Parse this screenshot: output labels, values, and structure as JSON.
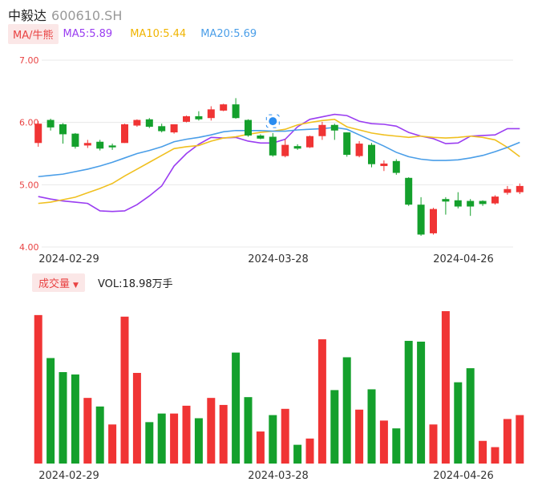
{
  "header": {
    "name": "中毅达",
    "code": "600610.SH"
  },
  "ma": {
    "tag": "MA/牛熊",
    "ma5": "MA5:5.89",
    "ma10": "MA10:5.44",
    "ma20": "MA20:5.69"
  },
  "volume": {
    "tag": "成交量",
    "label": "VOL:18.98万手"
  },
  "colors": {
    "up": "#f03434",
    "down": "#14a02c",
    "ma5": "#9a3df1",
    "ma10": "#f0c020",
    "ma20": "#4a9ee8",
    "axis_label": "#e94343",
    "grid": "#e8e8e8"
  },
  "chart_data": [
    {
      "type": "candlestick",
      "ylim": [
        4.0,
        7.0
      ],
      "y_ticks": [
        "7.00",
        "6.00",
        "5.00",
        "4.00"
      ],
      "x_ticks": [
        "2024-02-29",
        "2024-03-28",
        "2024-04-26"
      ],
      "candles": [
        {
          "o": 5.67,
          "c": 5.98,
          "h": 6.02,
          "l": 5.61
        },
        {
          "o": 6.04,
          "c": 5.92,
          "h": 6.06,
          "l": 5.87
        },
        {
          "o": 5.97,
          "c": 5.81,
          "h": 5.99,
          "l": 5.66
        },
        {
          "o": 5.82,
          "c": 5.61,
          "h": 5.83,
          "l": 5.58
        },
        {
          "o": 5.63,
          "c": 5.67,
          "h": 5.72,
          "l": 5.59
        },
        {
          "o": 5.69,
          "c": 5.58,
          "h": 5.72,
          "l": 5.55
        },
        {
          "o": 5.63,
          "c": 5.6,
          "h": 5.66,
          "l": 5.56
        },
        {
          "o": 5.67,
          "c": 5.97,
          "h": 5.98,
          "l": 5.67
        },
        {
          "o": 5.95,
          "c": 6.04,
          "h": 6.05,
          "l": 5.93
        },
        {
          "o": 6.05,
          "c": 5.93,
          "h": 6.07,
          "l": 5.91
        },
        {
          "o": 5.94,
          "c": 5.86,
          "h": 5.98,
          "l": 5.84
        },
        {
          "o": 5.84,
          "c": 5.97,
          "h": 5.97,
          "l": 5.82
        },
        {
          "o": 6.01,
          "c": 6.1,
          "h": 6.11,
          "l": 6.0
        },
        {
          "o": 6.1,
          "c": 6.05,
          "h": 6.18,
          "l": 6.03
        },
        {
          "o": 6.07,
          "c": 6.21,
          "h": 6.26,
          "l": 6.03
        },
        {
          "o": 6.19,
          "c": 6.29,
          "h": 6.3,
          "l": 6.18
        },
        {
          "o": 6.29,
          "c": 6.07,
          "h": 6.39,
          "l": 6.06
        },
        {
          "o": 6.04,
          "c": 5.79,
          "h": 6.05,
          "l": 5.77
        },
        {
          "o": 5.79,
          "c": 5.74,
          "h": 5.81,
          "l": 5.73
        },
        {
          "o": 5.77,
          "c": 5.47,
          "h": 5.83,
          "l": 5.45
        },
        {
          "o": 5.46,
          "c": 5.64,
          "h": 5.73,
          "l": 5.44
        },
        {
          "o": 5.62,
          "c": 5.58,
          "h": 5.65,
          "l": 5.56
        },
        {
          "o": 5.6,
          "c": 5.78,
          "h": 5.79,
          "l": 5.59
        },
        {
          "o": 5.78,
          "c": 5.96,
          "h": 6.01,
          "l": 5.72
        },
        {
          "o": 5.96,
          "c": 5.87,
          "h": 5.98,
          "l": 5.72
        },
        {
          "o": 5.84,
          "c": 5.48,
          "h": 5.84,
          "l": 5.45
        },
        {
          "o": 5.46,
          "c": 5.66,
          "h": 5.7,
          "l": 5.44
        },
        {
          "o": 5.64,
          "c": 5.33,
          "h": 5.67,
          "l": 5.28
        },
        {
          "o": 5.3,
          "c": 5.34,
          "h": 5.39,
          "l": 5.22
        },
        {
          "o": 5.38,
          "c": 5.19,
          "h": 5.41,
          "l": 5.16
        },
        {
          "o": 5.11,
          "c": 4.68,
          "h": 5.12,
          "l": 4.66
        },
        {
          "o": 4.68,
          "c": 4.2,
          "h": 4.8,
          "l": 4.18
        },
        {
          "o": 4.22,
          "c": 4.61,
          "h": 4.63,
          "l": 4.2
        },
        {
          "o": 4.77,
          "c": 4.73,
          "h": 4.8,
          "l": 4.52
        },
        {
          "o": 4.75,
          "c": 4.65,
          "h": 4.88,
          "l": 4.62
        },
        {
          "o": 4.74,
          "c": 4.65,
          "h": 4.77,
          "l": 4.5
        },
        {
          "o": 4.74,
          "c": 4.69,
          "h": 4.75,
          "l": 4.66
        },
        {
          "o": 4.7,
          "c": 4.81,
          "h": 4.83,
          "l": 4.68
        },
        {
          "o": 4.87,
          "c": 4.93,
          "h": 4.98,
          "l": 4.84
        },
        {
          "o": 4.88,
          "c": 4.98,
          "h": 5.02,
          "l": 4.85
        }
      ],
      "series": [
        {
          "name": "MA5",
          "values": [
            4.81,
            4.77,
            4.74,
            4.72,
            4.7,
            4.58,
            4.57,
            4.58,
            4.68,
            4.82,
            4.98,
            5.3,
            5.5,
            5.65,
            5.76,
            5.75,
            5.76,
            5.7,
            5.67,
            5.67,
            5.73,
            5.93,
            6.05,
            6.09,
            6.13,
            6.11,
            6.02,
            5.98,
            5.97,
            5.94,
            5.84,
            5.78,
            5.74,
            5.66,
            5.67,
            5.78,
            5.79,
            5.8,
            5.9,
            5.9
          ]
        },
        {
          "name": "MA10",
          "values": [
            4.7,
            4.72,
            4.76,
            4.8,
            4.87,
            4.94,
            5.02,
            5.14,
            5.25,
            5.36,
            5.47,
            5.58,
            5.61,
            5.63,
            5.7,
            5.75,
            5.77,
            5.81,
            5.84,
            5.86,
            5.89,
            5.96,
            6.0,
            6.03,
            6.05,
            5.93,
            5.88,
            5.83,
            5.8,
            5.78,
            5.76,
            5.78,
            5.76,
            5.75,
            5.76,
            5.78,
            5.76,
            5.72,
            5.6,
            5.45
          ]
        },
        {
          "name": "MA20",
          "values": [
            5.13,
            5.15,
            5.17,
            5.21,
            5.25,
            5.3,
            5.36,
            5.43,
            5.5,
            5.55,
            5.61,
            5.69,
            5.73,
            5.76,
            5.8,
            5.85,
            5.87,
            5.87,
            5.87,
            5.86,
            5.86,
            5.88,
            5.89,
            5.9,
            5.92,
            5.89,
            5.8,
            5.71,
            5.62,
            5.52,
            5.45,
            5.41,
            5.39,
            5.39,
            5.4,
            5.43,
            5.47,
            5.53,
            5.6,
            5.68
          ]
        }
      ]
    },
    {
      "type": "bar",
      "title": "成交量",
      "x_ticks": [
        "2024-02-29",
        "2024-03-28",
        "2024-04-26"
      ],
      "values": [
        190,
        135,
        117,
        114,
        84,
        73,
        50,
        188,
        116,
        53,
        64,
        64,
        74,
        58,
        84,
        75,
        142,
        85,
        41,
        62,
        70,
        24,
        32,
        159,
        94,
        136,
        69,
        95,
        55,
        45,
        157,
        156,
        50,
        195,
        104,
        122,
        29,
        21,
        57,
        62
      ],
      "direction": [
        "up",
        "down",
        "down",
        "down",
        "up",
        "down",
        "up",
        "up",
        "up",
        "down",
        "down",
        "up",
        "up",
        "down",
        "up",
        "up",
        "down",
        "down",
        "up",
        "down",
        "up",
        "down",
        "up",
        "up",
        "down",
        "down",
        "up",
        "down",
        "up",
        "down",
        "down",
        "down",
        "up",
        "up",
        "down",
        "down",
        "up",
        "up",
        "up",
        "up"
      ]
    }
  ]
}
